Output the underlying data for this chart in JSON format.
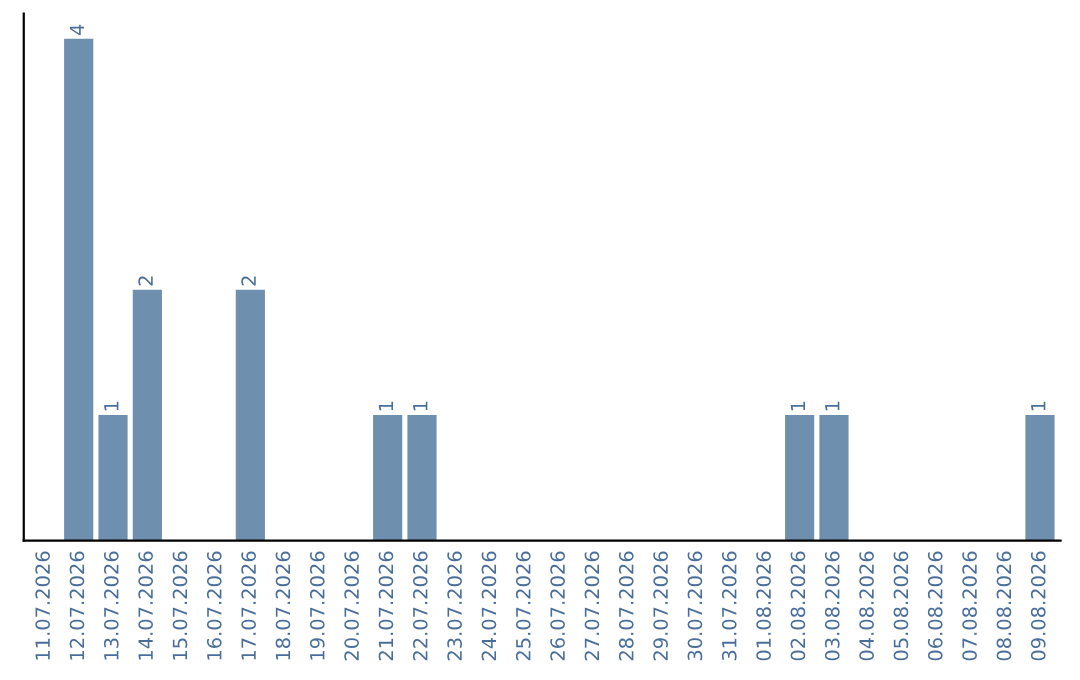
{
  "chart_data": {
    "type": "bar",
    "categories": [
      "11.07.2026",
      "12.07.2026",
      "13.07.2026",
      "14.07.2026",
      "15.07.2026",
      "16.07.2026",
      "17.07.2026",
      "18.07.2026",
      "19.07.2026",
      "20.07.2026",
      "21.07.2026",
      "22.07.2026",
      "23.07.2026",
      "24.07.2026",
      "25.07.2026",
      "26.07.2026",
      "27.07.2026",
      "28.07.2026",
      "29.07.2026",
      "30.07.2026",
      "31.07.2026",
      "01.08.2026",
      "02.08.2026",
      "03.08.2026",
      "04.08.2026",
      "05.08.2026",
      "06.08.2026",
      "07.08.2026",
      "08.08.2026",
      "09.08.2026"
    ],
    "values": [
      0,
      4,
      1,
      2,
      0,
      0,
      2,
      0,
      0,
      0,
      1,
      1,
      0,
      0,
      0,
      0,
      0,
      0,
      0,
      0,
      0,
      0,
      1,
      1,
      0,
      0,
      0,
      0,
      0,
      1
    ],
    "value_labels": [
      null,
      "4",
      "1",
      "2",
      null,
      null,
      "2",
      null,
      null,
      null,
      "1",
      "1",
      null,
      null,
      null,
      null,
      null,
      null,
      null,
      null,
      null,
      null,
      "1",
      "1",
      null,
      null,
      null,
      null,
      null,
      "1"
    ],
    "color": "#6f8faf",
    "grid": false,
    "legend": false,
    "tick_labels": "x"
  }
}
